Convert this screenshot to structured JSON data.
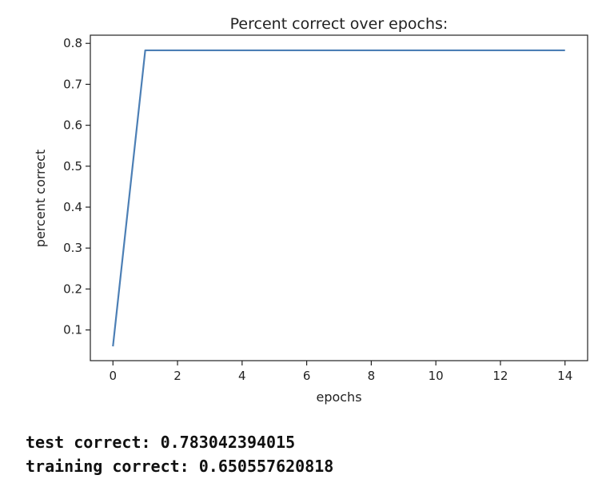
{
  "chart_data": {
    "type": "line",
    "title": "Percent correct over epochs:",
    "xlabel": "epochs",
    "ylabel": "percent correct",
    "xlim": [
      -0.7,
      14.7
    ],
    "ylim": [
      0.025,
      0.82
    ],
    "xticks": [
      0,
      2,
      4,
      6,
      8,
      10,
      12,
      14
    ],
    "yticks": [
      0.1,
      0.2,
      0.3,
      0.4,
      0.5,
      0.6,
      0.7,
      0.8
    ],
    "xtick_labels": [
      "0",
      "2",
      "4",
      "6",
      "8",
      "10",
      "12",
      "14"
    ],
    "ytick_labels": [
      "0.1",
      "0.2",
      "0.3",
      "0.4",
      "0.5",
      "0.6",
      "0.7",
      "0.8"
    ],
    "grid": false,
    "series": [
      {
        "color": "#4c7fb5",
        "x": [
          0,
          1,
          2,
          3,
          4,
          5,
          6,
          7,
          8,
          9,
          10,
          11,
          12,
          13,
          14
        ],
        "y": [
          0.06,
          0.783,
          0.783,
          0.783,
          0.783,
          0.783,
          0.783,
          0.783,
          0.783,
          0.783,
          0.783,
          0.783,
          0.783,
          0.783,
          0.783
        ]
      }
    ]
  },
  "output": {
    "test_line": "test correct: 0.783042394015",
    "training_line": "training correct: 0.650557620818"
  }
}
